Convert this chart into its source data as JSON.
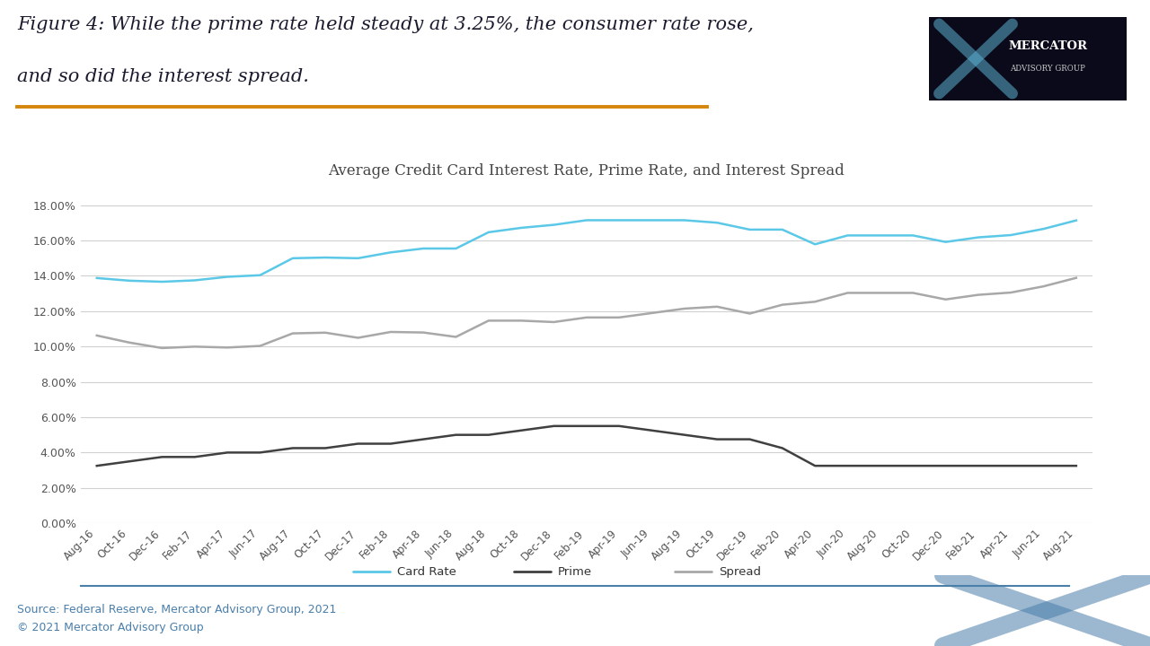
{
  "title": "Average Credit Card Interest Rate, Prime Rate, and Interest Spread",
  "figure_title_line1": "Figure 4: While the prime rate held steady at 3.25%, the consumer rate rose,",
  "figure_title_line2": "and so did the interest spread.",
  "source_text": "Source: Federal Reserve, Mercator Advisory Group, 2021",
  "copyright_text": "© 2021 Mercator Advisory Group",
  "x_labels": [
    "Aug-16",
    "Oct-16",
    "Dec-16",
    "Feb-17",
    "Apr-17",
    "Jun-17",
    "Aug-17",
    "Oct-17",
    "Dec-17",
    "Feb-18",
    "Apr-18",
    "Jun-18",
    "Aug-18",
    "Oct-18",
    "Dec-18",
    "Feb-19",
    "Apr-19",
    "Jun-19",
    "Aug-19",
    "Oct-19",
    "Dec-19",
    "Feb-20",
    "Apr-20",
    "Jun-20",
    "Aug-20",
    "Oct-20",
    "Dec-20",
    "Feb-21",
    "Apr-21",
    "Jun-21",
    "Aug-21"
  ],
  "card_rate": [
    13.87,
    13.72,
    13.66,
    13.74,
    13.94,
    14.03,
    14.99,
    15.03,
    14.99,
    15.32,
    15.54,
    15.54,
    16.46,
    16.71,
    16.88,
    17.14,
    17.14,
    17.14,
    17.14,
    17.0,
    16.61,
    16.61,
    15.78,
    16.28,
    16.28,
    16.28,
    15.91,
    16.17,
    16.3,
    16.65,
    17.13
  ],
  "prime_rate": [
    3.25,
    3.5,
    3.75,
    3.75,
    4.0,
    4.0,
    4.25,
    4.25,
    4.5,
    4.5,
    4.75,
    5.0,
    5.0,
    5.25,
    5.5,
    5.5,
    5.5,
    5.25,
    5.0,
    4.75,
    4.75,
    4.25,
    3.25,
    3.25,
    3.25,
    3.25,
    3.25,
    3.25,
    3.25,
    3.25,
    3.25
  ],
  "spread": [
    10.62,
    10.22,
    9.91,
    9.99,
    9.94,
    10.03,
    10.74,
    10.78,
    10.49,
    10.82,
    10.79,
    10.54,
    11.46,
    11.46,
    11.38,
    11.64,
    11.64,
    11.89,
    12.14,
    12.25,
    11.86,
    12.36,
    12.53,
    13.03,
    13.03,
    13.03,
    12.66,
    12.92,
    13.05,
    13.4,
    13.88
  ],
  "card_rate_color": "#5bc8e8",
  "prime_rate_color": "#404040",
  "spread_color": "#a8a8a8",
  "ylim": [
    0.0,
    0.19
  ],
  "yticks": [
    0.0,
    0.02,
    0.04,
    0.06,
    0.08,
    0.1,
    0.12,
    0.14,
    0.16,
    0.18
  ],
  "ytick_labels": [
    "0.00%",
    "2.00%",
    "4.00%",
    "6.00%",
    "8.00%",
    "10.00%",
    "12.00%",
    "14.00%",
    "16.00%",
    "18.00%"
  ],
  "background_color": "#ffffff",
  "plot_bg_color": "#ffffff",
  "grid_color": "#d0d0d0",
  "title_color": "#444444",
  "header_color": "#1a1a2e",
  "orange_line_color": "#d4860a",
  "blue_line_color": "#4a7faa",
  "logo_bg_color": "#0a0a1a",
  "legend_items": [
    {
      "label": "Card Rate",
      "color": "#5bc8e8"
    },
    {
      "label": "Prime",
      "color": "#404040"
    },
    {
      "label": "Spread",
      "color": "#a8a8a8"
    }
  ]
}
